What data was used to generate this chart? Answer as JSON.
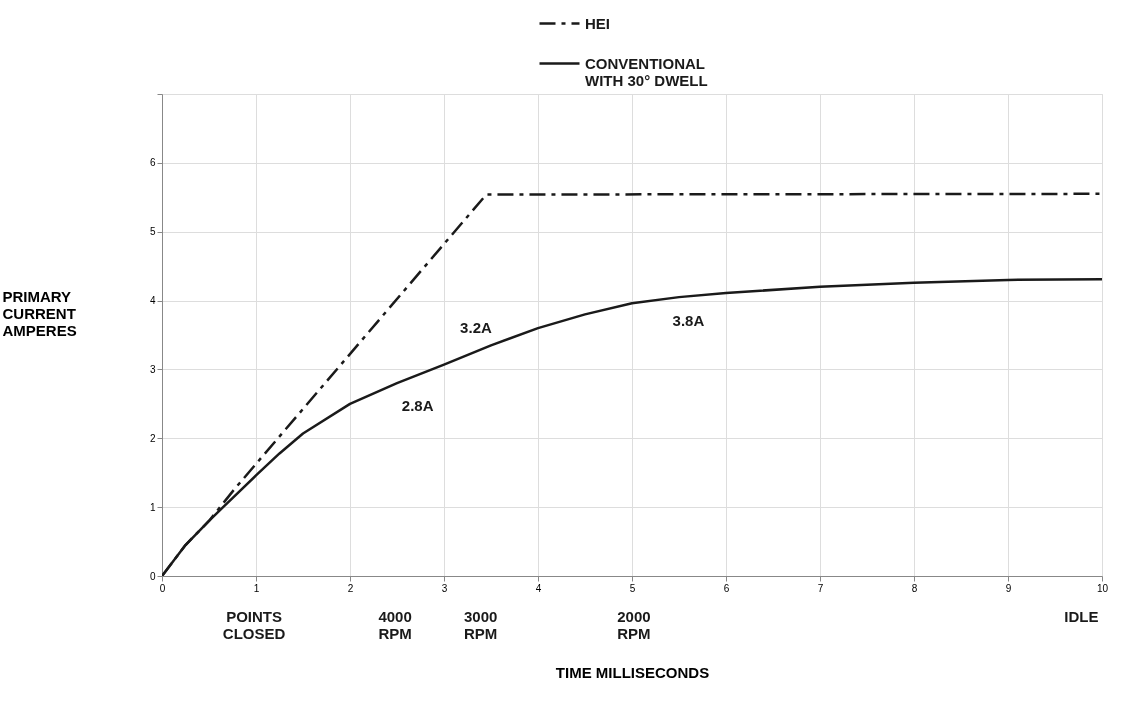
{
  "chart_data": {
    "type": "line",
    "xlabel": "TIME MILLISECONDS",
    "ylabel": "PRIMARY\nCURRENT\nAMPERES",
    "xlim": [
      0,
      10
    ],
    "xticks": [
      0,
      1,
      2,
      3,
      4,
      5,
      6,
      7,
      8,
      9,
      10
    ],
    "ylim": [
      0,
      7
    ],
    "yticks": [
      0,
      1,
      2,
      3,
      4,
      5,
      6,
      {
        "value": 7,
        "label": null
      }
    ],
    "grid": true,
    "legend": "top",
    "tick_labels": true,
    "series": [
      {
        "name": "HEI",
        "color": "#1a1a1a",
        "line_style": "dashed",
        "x": [
          0,
          0.25,
          0.5,
          0.77,
          3.45,
          10
        ],
        "values": [
          0,
          0.45,
          0.8,
          1.26,
          5.54,
          5.55
        ]
      },
      {
        "name": "CONVENTIONAL\nWITH 30° DWELL",
        "color": "#1a1a1a",
        "line_style": "solid",
        "x": [
          0,
          0.25,
          0.5,
          0.65,
          0.75,
          1,
          1.25,
          1.5,
          2,
          2.5,
          3,
          3.5,
          4,
          4.5,
          5,
          5.5,
          6,
          7,
          8,
          9,
          10
        ],
        "values": [
          0,
          0.45,
          0.8,
          1.0,
          1.13,
          1.46,
          1.78,
          2.07,
          2.5,
          2.8,
          3.07,
          3.35,
          3.6,
          3.8,
          3.96,
          4.05,
          4.11,
          4.2,
          4.26,
          4.3,
          4.31
        ]
      }
    ],
    "annotations": [
      "2.8A",
      "3.2A",
      "3.8A",
      "POINTS\nCLOSED",
      "4000\nRPM",
      "3000\nRPM",
      "2000\nRPM",
      "IDLE"
    ]
  }
}
